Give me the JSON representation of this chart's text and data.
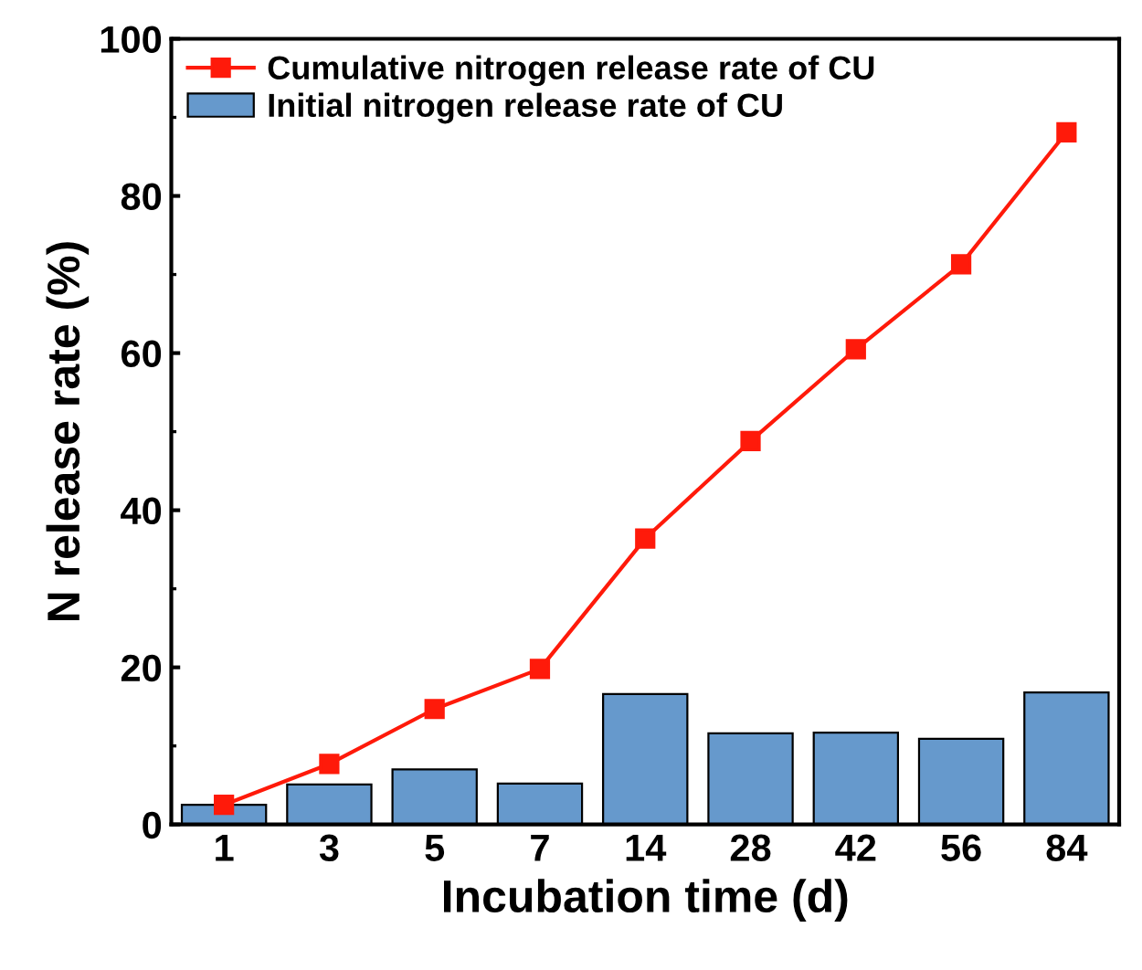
{
  "chart_data": {
    "type": "bar",
    "xlabel": "Incubation time (d)",
    "ylabel": "N release rate (%)",
    "categories": [
      "1",
      "3",
      "5",
      "7",
      "14",
      "28",
      "42",
      "56",
      "84"
    ],
    "series": [
      {
        "name": "Cumulative nitrogen release rate of CU",
        "type": "line",
        "color": "#ff1a0a",
        "marker": "square",
        "values": [
          2.5,
          7.7,
          14.7,
          19.8,
          36.4,
          48.8,
          60.5,
          71.3,
          88.1
        ]
      },
      {
        "name": "Initial nitrogen release rate of CU",
        "color": "#6699cc",
        "values": [
          2.5,
          5.1,
          7.0,
          5.2,
          16.6,
          11.6,
          11.7,
          10.9,
          16.8
        ]
      }
    ],
    "ylim": [
      0,
      100
    ],
    "yticks": [
      0,
      20,
      40,
      60,
      80,
      100
    ],
    "grid": false,
    "legend": "top left"
  }
}
